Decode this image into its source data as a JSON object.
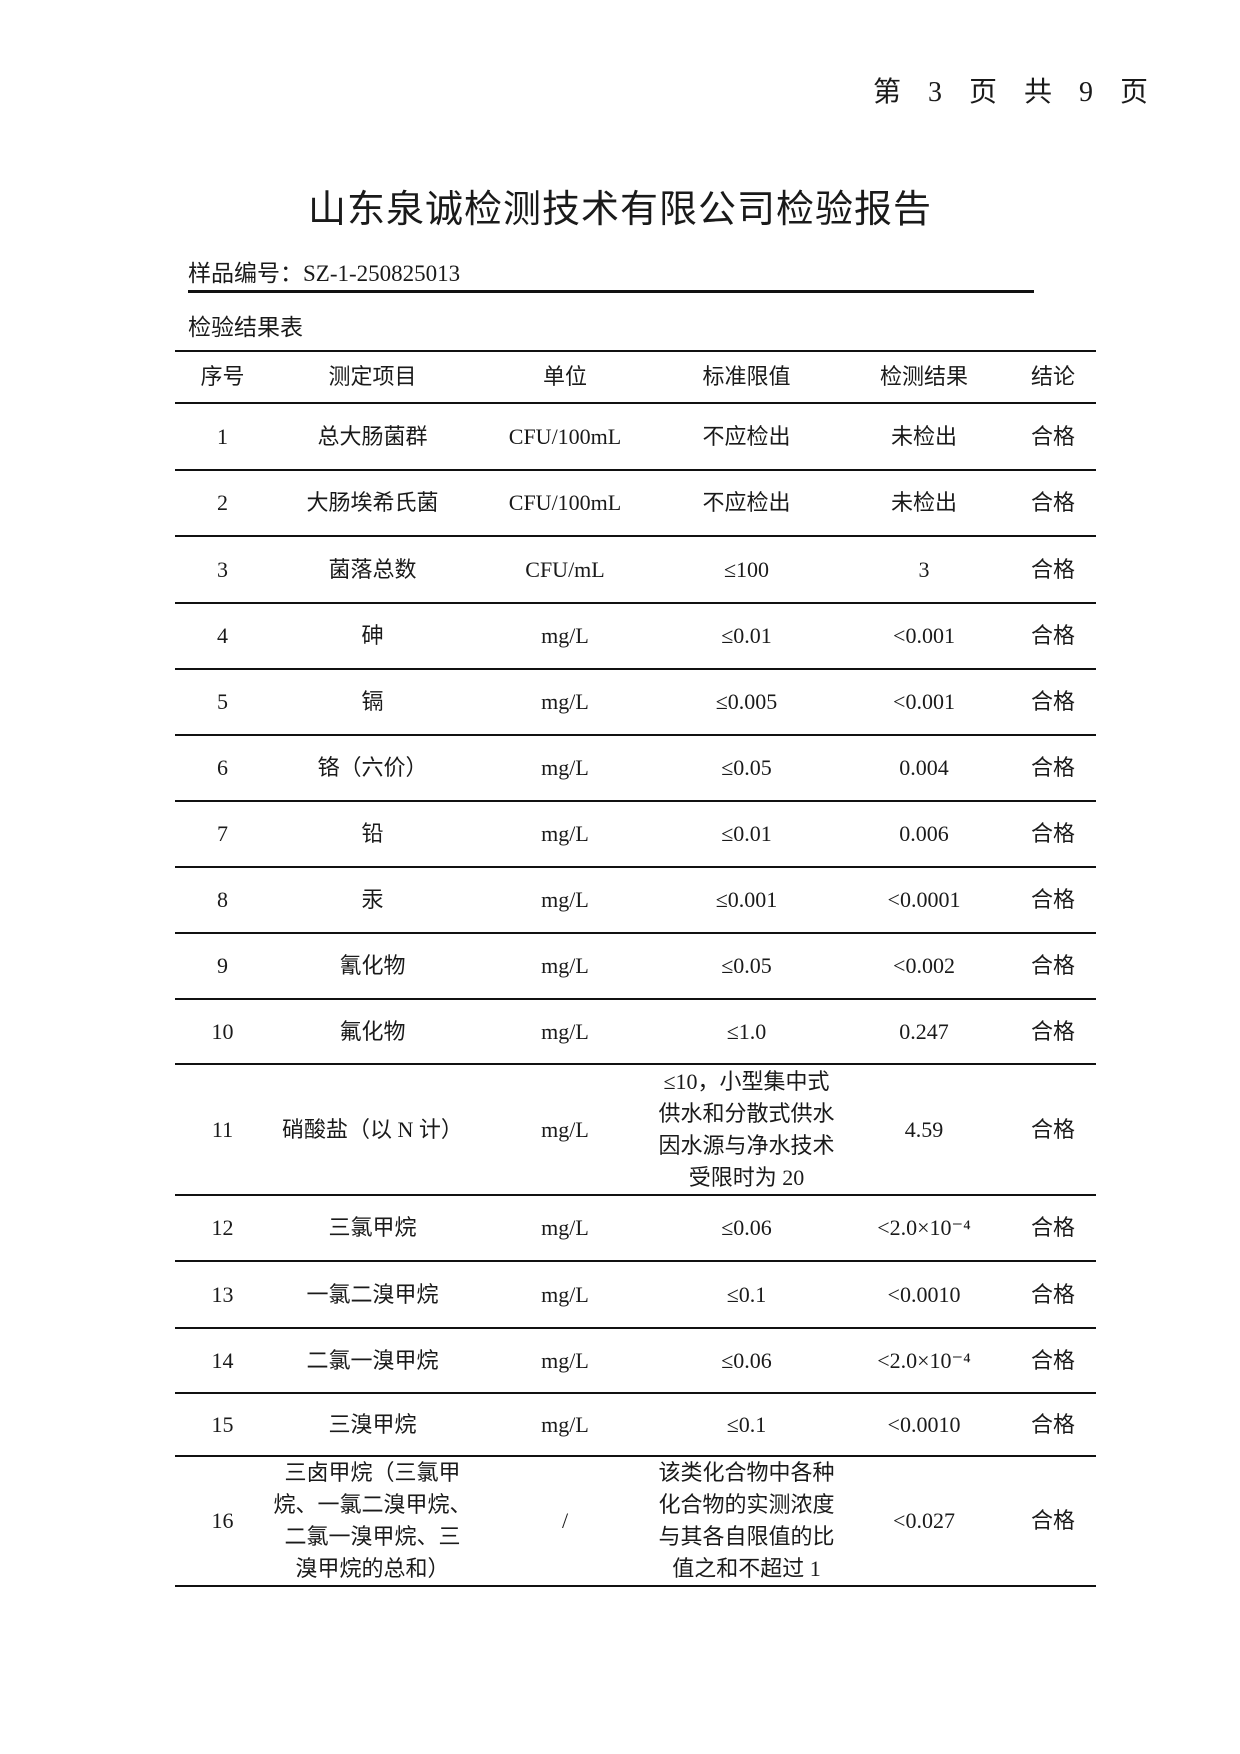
{
  "page_number": "第 3 页 共 9 页",
  "title": "山东泉诚检测技术有限公司检验报告",
  "sample_number": "样品编号：SZ-1-250825013",
  "table_caption": "检验结果表",
  "table": {
    "headers": [
      "序号",
      "测定项目",
      "单位",
      "标准限值",
      "检测结果",
      "结论"
    ],
    "rows": [
      [
        "1",
        "总大肠菌群",
        "CFU/100mL",
        "不应检出",
        "未检出",
        "合格"
      ],
      [
        "2",
        "大肠埃希氏菌",
        "CFU/100mL",
        "不应检出",
        "未检出",
        "合格"
      ],
      [
        "3",
        "菌落总数",
        "CFU/mL",
        "≤100",
        "3",
        "合格"
      ],
      [
        "4",
        "砷",
        "mg/L",
        "≤0.01",
        "<0.001",
        "合格"
      ],
      [
        "5",
        "镉",
        "mg/L",
        "≤0.005",
        "<0.001",
        "合格"
      ],
      [
        "6",
        "铬（六价）",
        "mg/L",
        "≤0.05",
        "0.004",
        "合格"
      ],
      [
        "7",
        "铅",
        "mg/L",
        "≤0.01",
        "0.006",
        "合格"
      ],
      [
        "8",
        "汞",
        "mg/L",
        "≤0.001",
        "<0.0001",
        "合格"
      ],
      [
        "9",
        "氰化物",
        "mg/L",
        "≤0.05",
        "<0.002",
        "合格"
      ],
      [
        "10",
        "氟化物",
        "mg/L",
        "≤1.0",
        "0.247",
        "合格"
      ],
      [
        "11",
        "硝酸盐（以 N 计）",
        "mg/L",
        "≤10，小型集中式\n供水和分散式供水\n因水源与净水技术\n受限时为 20",
        "4.59",
        "合格"
      ],
      [
        "12",
        "三氯甲烷",
        "mg/L",
        "≤0.06",
        "<2.0×10⁻⁴",
        "合格"
      ],
      [
        "13",
        "一氯二溴甲烷",
        "mg/L",
        "≤0.1",
        "<0.0010",
        "合格"
      ],
      [
        "14",
        "二氯一溴甲烷",
        "mg/L",
        "≤0.06",
        "<2.0×10⁻⁴",
        "合格"
      ],
      [
        "15",
        "三溴甲烷",
        "mg/L",
        "≤0.1",
        "<0.0010",
        "合格"
      ],
      [
        "16",
        "三卤甲烷（三氯甲\n烷、一氯二溴甲烷、\n二氯一溴甲烷、三\n溴甲烷的总和）",
        "/",
        "该类化合物中各种\n化合物的实测浓度\n与其各自限值的比\n值之和不超过 1",
        "<0.027",
        "合格"
      ]
    ]
  }
}
